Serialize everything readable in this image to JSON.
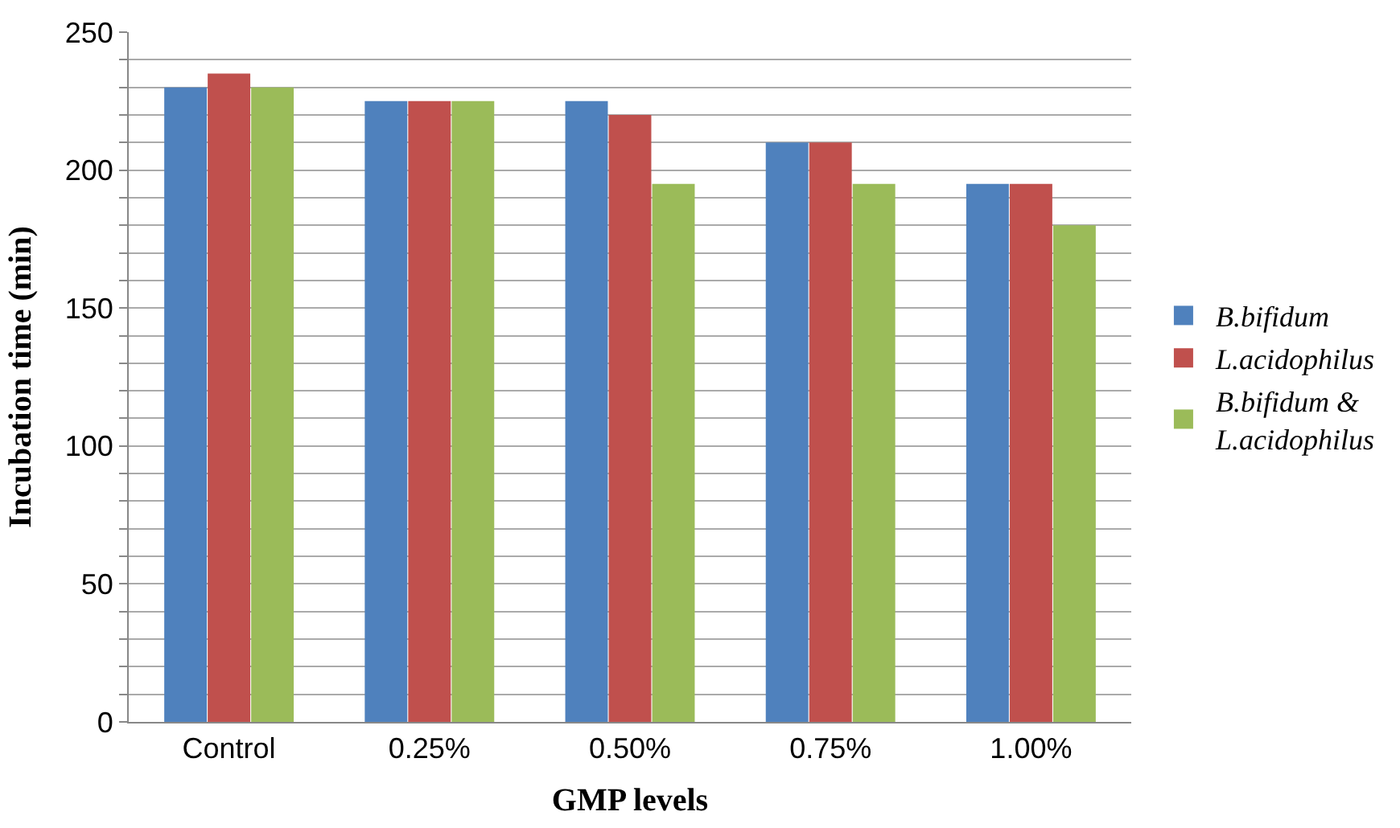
{
  "chart_data": {
    "type": "bar",
    "xlabel": "GMP levels",
    "ylabel": "Incubation time (min)",
    "categories": [
      "Control",
      "0.25%",
      "0.50%",
      "0.75%",
      "1.00%"
    ],
    "series": [
      {
        "name": "B.bifidum",
        "color": "#4f81bd",
        "values": [
          230,
          225,
          225,
          210,
          195
        ]
      },
      {
        "name": "L.acidophilus",
        "color": "#c0504d",
        "values": [
          235,
          225,
          220,
          210,
          195
        ]
      },
      {
        "name": "B.bifidum & L.acidophilus",
        "color": "#9bbb59",
        "values": [
          230,
          225,
          195,
          195,
          180
        ]
      }
    ],
    "ylim": [
      0,
      250
    ],
    "yticks": [
      0,
      {
        "value": 10,
        "label": null
      },
      {
        "value": 20,
        "label": null
      },
      {
        "value": 30,
        "label": null
      },
      {
        "value": 40,
        "label": null
      },
      50,
      {
        "value": 60,
        "label": null
      },
      {
        "value": 70,
        "label": null
      },
      {
        "value": 80,
        "label": null
      },
      {
        "value": 90,
        "label": null
      },
      100,
      {
        "value": 110,
        "label": null
      },
      {
        "value": 120,
        "label": null
      },
      {
        "value": 130,
        "label": null
      },
      {
        "value": 140,
        "label": null
      },
      150,
      {
        "value": 160,
        "label": null
      },
      {
        "value": 170,
        "label": null
      },
      {
        "value": 180,
        "label": null
      },
      {
        "value": 190,
        "label": null
      },
      200,
      {
        "value": 210,
        "label": null
      },
      {
        "value": 220,
        "label": null
      },
      {
        "value": 230,
        "label": null
      },
      {
        "value": 240,
        "label": null
      },
      250
    ],
    "grid": "y",
    "legend": "right"
  }
}
